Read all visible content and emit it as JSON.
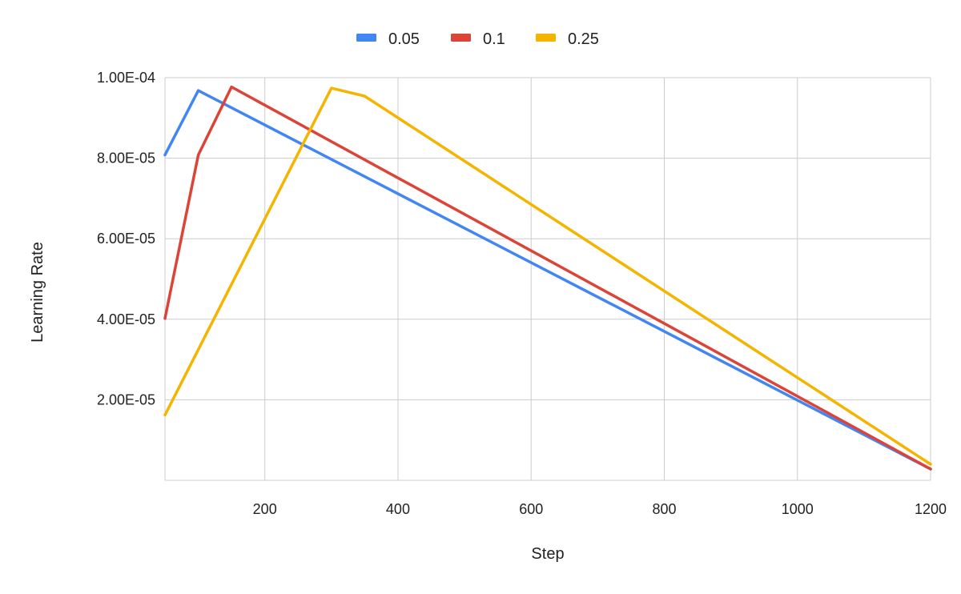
{
  "chart_data": {
    "type": "line",
    "title": "",
    "xlabel": "Step",
    "ylabel": "Learning Rate",
    "xlim": [
      50,
      1200
    ],
    "ylim": [
      0,
      0.0001
    ],
    "x_ticks": [
      200,
      400,
      600,
      800,
      1000,
      1200
    ],
    "x_tick_labels": [
      "200",
      "400",
      "600",
      "800",
      "1000",
      "1200"
    ],
    "y_ticks": [
      2e-05,
      4e-05,
      6e-05,
      8e-05,
      0.0001
    ],
    "y_tick_labels": [
      "2.00E-05",
      "4.00E-05",
      "6.00E-05",
      "8.00E-05",
      "1.00E-04"
    ],
    "grid": true,
    "legend_position": "top",
    "series": [
      {
        "name": "0.05",
        "color": "#4285F4",
        "points": [
          [
            50,
            8.08e-05
          ],
          [
            100,
            9.68e-05
          ],
          [
            1200,
            2.8e-06
          ]
        ]
      },
      {
        "name": "0.1",
        "color": "#DB4437",
        "points": [
          [
            50,
            4.02e-05
          ],
          [
            100,
            8.08e-05
          ],
          [
            150,
            9.77e-05
          ],
          [
            1200,
            2.8e-06
          ]
        ]
      },
      {
        "name": "0.25",
        "color": "#F4B400",
        "points": [
          [
            50,
            1.62e-05
          ],
          [
            300,
            9.74e-05
          ],
          [
            350,
            9.54e-05
          ],
          [
            1200,
            4e-06
          ]
        ]
      }
    ]
  }
}
